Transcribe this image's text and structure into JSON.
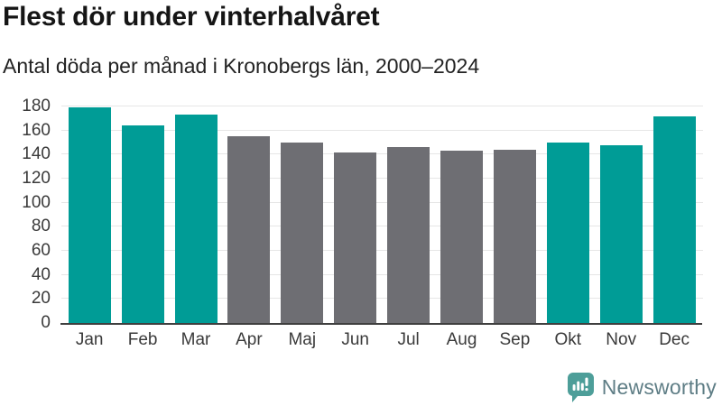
{
  "header": {
    "title": "Flest dör under vinterhalvåret",
    "subtitle": "Antal döda per månad i Kronobergs län, 2000–2024"
  },
  "chart_data": {
    "type": "bar",
    "title": "Flest dör under vinterhalvåret",
    "subtitle": "Antal döda per månad i Kronobergs län, 2000–2024",
    "categories": [
      "Jan",
      "Feb",
      "Mar",
      "Apr",
      "Maj",
      "Jun",
      "Jul",
      "Aug",
      "Sep",
      "Okt",
      "Nov",
      "Dec"
    ],
    "values": [
      179,
      164,
      173,
      155,
      150,
      142,
      146,
      143,
      144,
      150,
      148,
      172
    ],
    "highlighted_categories": [
      "Jan",
      "Feb",
      "Mar",
      "Okt",
      "Nov",
      "Dec"
    ],
    "highlight_color": "#009c96",
    "base_color": "#6e6e73",
    "xlabel": "",
    "ylabel": "",
    "ylim": [
      0,
      180
    ],
    "yticks": [
      0,
      20,
      40,
      60,
      80,
      100,
      120,
      140,
      160,
      180
    ],
    "grid": true,
    "gridline_color": "#e6e6e6",
    "axis_line_color": "#3f3f3f",
    "legend": "none"
  },
  "footer": {
    "brand": "Newsworthy",
    "brand_icon": "newsworthy-speech-bubble-chart-icon",
    "brand_icon_color": "#4d9e99",
    "brand_text_color": "#5e7d85"
  }
}
